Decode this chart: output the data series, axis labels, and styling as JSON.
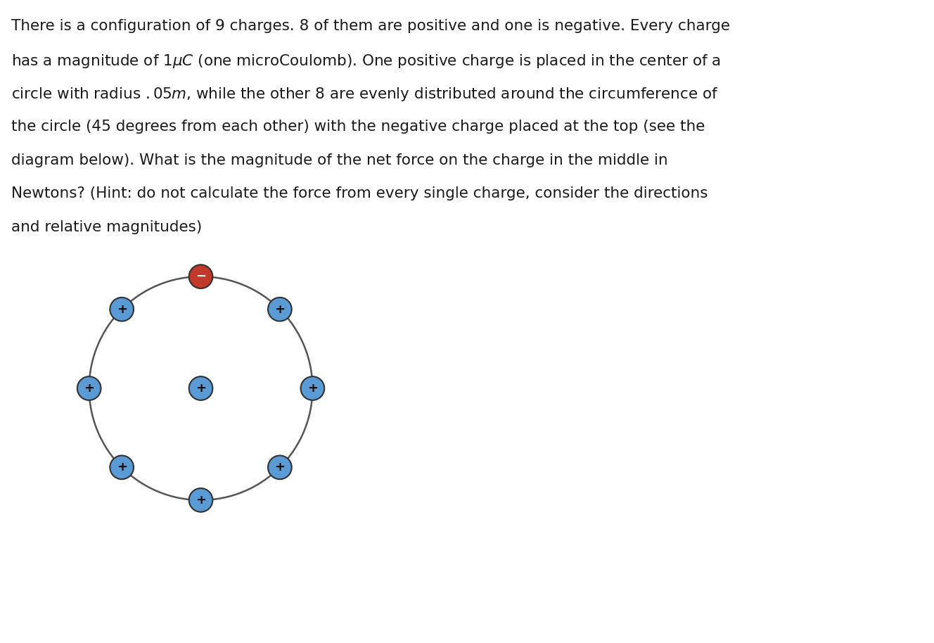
{
  "positive_color": "#5b9bd5",
  "negative_color": "#c0392b",
  "circle_color": "#555555",
  "bg_color": "#ffffff",
  "text_fontsize": 15.5,
  "charge_label_fontsize": 13,
  "text_lines": [
    "There is a configuration of 9 charges. 8 of them are positive and one is negative. Every charge",
    "has a magnitude of $1\\mu C$ (one microCoulomb). One positive charge is placed in the center of a",
    "circle with radius $.05m$, while the other 8 are evenly distributed around the circumference of",
    "the circle (45 degrees from each other) with the negative charge placed at the top (see the",
    "diagram below). What is the magnitude of the net force on the charge in the middle in",
    "Newtons? (Hint: do not calculate the force from every single charge, consider the directions",
    "and relative magnitudes)"
  ],
  "fig_width": 13.28,
  "fig_height": 9.14,
  "dpi": 100
}
